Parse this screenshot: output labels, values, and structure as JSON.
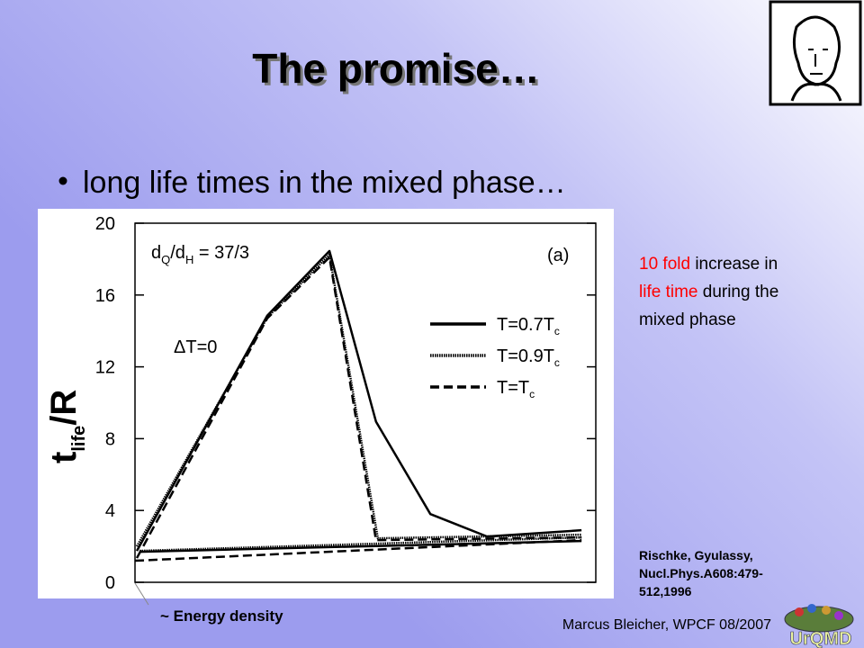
{
  "slide_title": "The promise…",
  "bullet": "long life times in the mixed phase…",
  "note": [
    {
      "text": "10 fold",
      "color": "#ff0000"
    },
    {
      "text": " increase in",
      "color": "#000000"
    },
    {
      "text": "life time",
      "color": "#ff0000"
    },
    {
      "text": " during the",
      "color": "#000000"
    },
    {
      "text": "mixed phase",
      "color": "#000000"
    }
  ],
  "reference": [
    "Rischke, Gyulassy,",
    "Nucl.Phys.A608:479-",
    "512,1996"
  ],
  "x_caption": "~ Energy density",
  "footer": "Marcus Bleicher, WPCF 08/2007",
  "logo": "UrQMD",
  "chart_data": {
    "type": "line",
    "ylabel": {
      "main": "t",
      "sub": "life",
      "rest": "/R"
    },
    "annotations": [
      {
        "parts": [
          "d",
          "Q",
          "/d",
          "H",
          " = 37/3"
        ]
      },
      {
        "parts": [
          "(a)"
        ]
      },
      {
        "parts": [
          "ΔT=0"
        ]
      }
    ],
    "xlim": [
      0,
      1
    ],
    "ylim": [
      0,
      20
    ],
    "yticks": [
      0,
      4,
      8,
      12,
      16,
      20
    ],
    "series": [
      {
        "name": "T=0.7T",
        "name_sub": "c",
        "color": "#000000",
        "style": "solid",
        "x": [
          0.004,
          0.287,
          0.422,
          0.523,
          0.641,
          0.764,
          0.969,
          null,
          0.01,
          0.969
        ],
        "values": [
          1.75,
          14.85,
          18.45,
          8.95,
          3.8,
          2.55,
          2.9,
          null,
          1.7,
          2.3
        ]
      },
      {
        "name": "T=0.9T",
        "name_sub": "c",
        "color": "#000000",
        "style": "dotted",
        "x": [
          0.004,
          0.287,
          0.422,
          0.527,
          0.969,
          null,
          0.01,
          0.969
        ],
        "values": [
          2.0,
          14.75,
          18.25,
          2.45,
          2.65,
          null,
          1.75,
          2.5
        ]
      },
      {
        "name": "T=T",
        "name_sub": "c",
        "color": "#000000",
        "style": "dashed",
        "x": [
          0.004,
          0.287,
          0.422,
          0.523,
          0.969,
          null,
          0.0,
          0.969
        ],
        "values": [
          1.35,
          14.7,
          18.1,
          2.35,
          2.5,
          null,
          1.2,
          2.35
        ]
      }
    ]
  }
}
